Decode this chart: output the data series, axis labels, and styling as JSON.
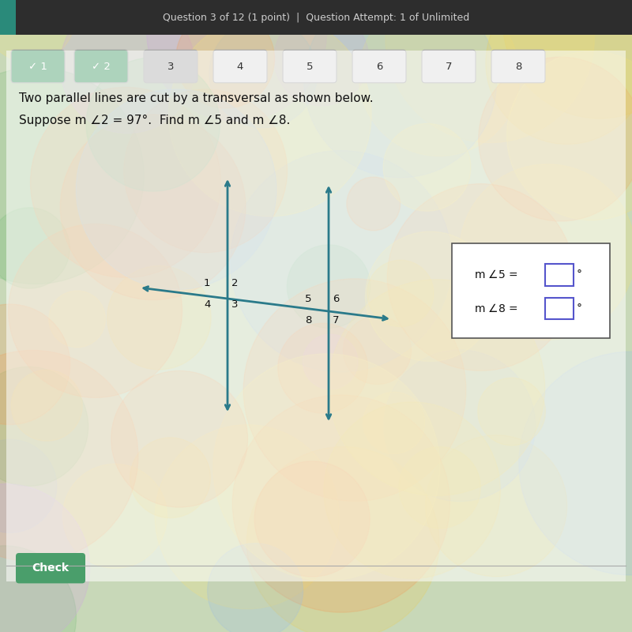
{
  "bg_color": "#c8d8b8",
  "header_bg": "#2d2d2d",
  "header_text": "Question 3 of 12 (1 point)  |  Question Attempt: 1 of Unlimited",
  "header_text_color": "#cccccc",
  "nav_buttons": [
    "1",
    "2",
    "3",
    "4",
    "5",
    "6",
    "7",
    "8"
  ],
  "nav_checked": [
    true,
    true,
    false,
    false,
    false,
    false,
    false,
    false
  ],
  "nav_active": 2,
  "nav_bg_checked": "#4a9e6b",
  "nav_bg_active": "#b0b0b0",
  "nav_bg_default": "#e0e0e0",
  "problem_text_line1": "Two parallel lines are cut by a transversal as shown below.",
  "problem_text_line2": "Suppose m ∠2 = 97°.  Find m ∠5 and m ∠8.",
  "text_color": "#222222",
  "line_color": "#2a7a8a",
  "line_width": 2.0,
  "check_button_text": "Check",
  "check_button_bg": "#4a9e6b"
}
